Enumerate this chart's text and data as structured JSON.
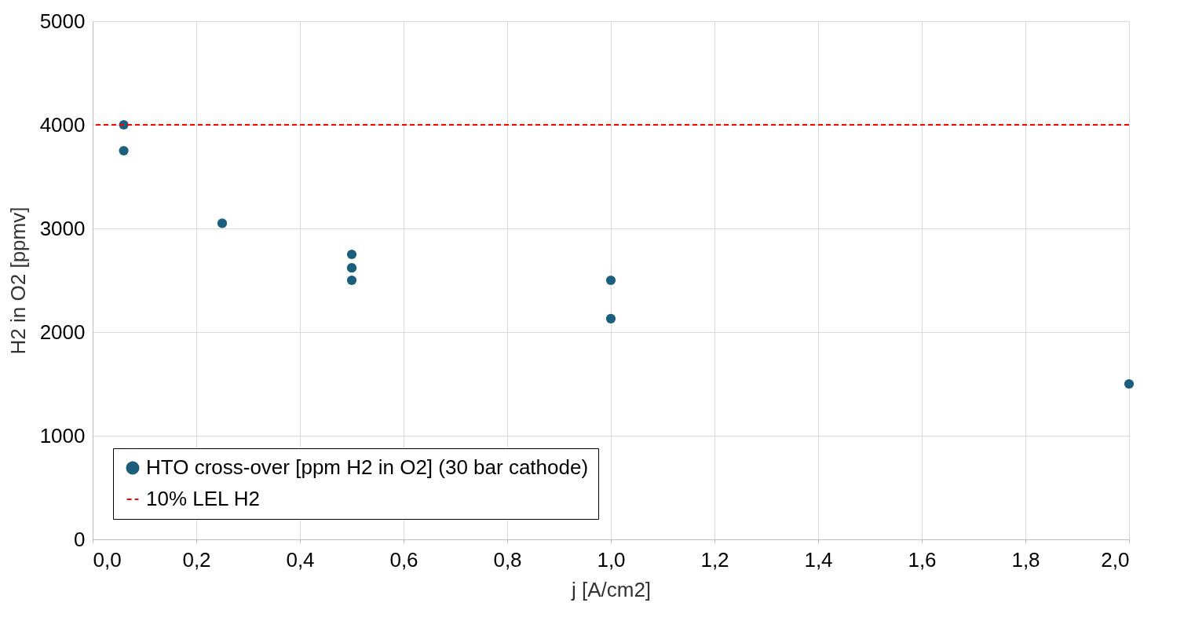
{
  "chart_data": {
    "type": "scatter",
    "xlabel": "j [A/cm2]",
    "ylabel": "H2 in O2 [ppmv]",
    "series": [
      {
        "name": "HTO cross-over [ppm H2 in O2] (30 bar cathode)",
        "color": "#1b5e7e",
        "x": [
          0.06,
          0.06,
          0.25,
          0.5,
          0.5,
          0.5,
          1.0,
          1.0,
          2.0
        ],
        "values": [
          4000,
          3750,
          3050,
          2750,
          2620,
          2500,
          2500,
          2130,
          1500
        ]
      }
    ],
    "ref_lines": [
      {
        "axis": "y",
        "value": 4000,
        "label": "10% LEL H2",
        "color": "#ff0000",
        "line_style": "dashed"
      }
    ],
    "xlim": [
      0,
      2.0
    ],
    "ylim": [
      0,
      5000
    ],
    "xticks": [
      {
        "value": 0,
        "label": "0,0"
      },
      {
        "value": 0.2,
        "label": "0,2"
      },
      {
        "value": 0.4,
        "label": "0,4"
      },
      {
        "value": 0.6,
        "label": "0,6"
      },
      {
        "value": 0.8,
        "label": "0,8"
      },
      {
        "value": 1.0,
        "label": "1,0"
      },
      {
        "value": 1.2,
        "label": "1,2"
      },
      {
        "value": 1.4,
        "label": "1,4"
      },
      {
        "value": 1.6,
        "label": "1,6"
      },
      {
        "value": 1.8,
        "label": "1,8"
      },
      {
        "value": 2.0,
        "label": "2,0"
      }
    ],
    "yticks": [
      0,
      1000,
      2000,
      3000,
      4000,
      5000
    ],
    "grid": true,
    "legend": "bottom left",
    "marker": "circle"
  }
}
